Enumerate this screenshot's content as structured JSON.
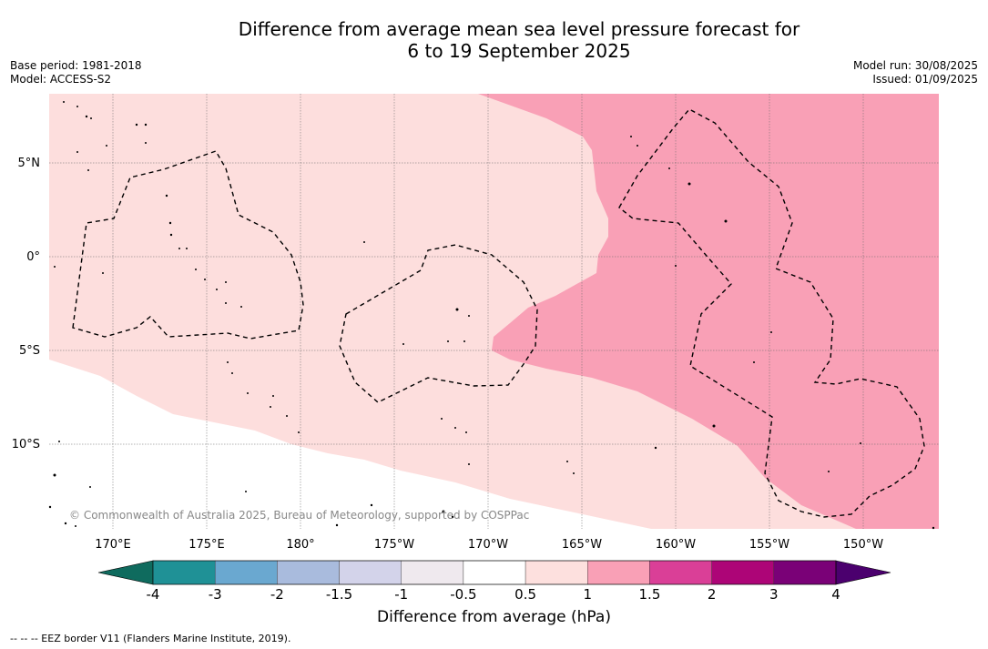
{
  "title_line1": "Difference from average mean sea level pressure forecast for",
  "title_line2": "6 to 19 September 2025",
  "meta_left": {
    "base_period": "Base period: 1981-2018",
    "model": "Model: ACCESS-S2"
  },
  "meta_right": {
    "model_run": "Model run: 30/08/2025",
    "issued": "Issued: 01/09/2025"
  },
  "copyright": "© Commonwealth of Australia 2025, Bureau of Meteorology, supported by COSPPac",
  "lat_labels": [
    "5°N",
    "0°",
    "5°S",
    "10°S"
  ],
  "lon_labels": [
    "170°E",
    "175°E",
    "180°",
    "175°W",
    "170°W",
    "165°W",
    "160°W",
    "155°W",
    "150°W"
  ],
  "colorbar": {
    "title": "Difference from average (hPa)",
    "tick_labels": [
      "-4",
      "-3",
      "-2",
      "-1.5",
      "-1",
      "-0.5",
      "0.5",
      "1",
      "1.5",
      "2",
      "3",
      "4"
    ],
    "colors": [
      "#0f6b5e",
      "#1f9196",
      "#6aa8d0",
      "#a9bbdd",
      "#d3d3ea",
      "#efe9ee",
      "#ffffff",
      "#fde0de",
      "#f9a0b6",
      "#da3f97",
      "#ad0577",
      "#7a0177",
      "#4b006e"
    ]
  },
  "map_colors": {
    "class_0_5_to_1": "#fddedd",
    "class_1_to_1_5": "#f9a0b6",
    "below_0_5": "#ffffff"
  },
  "footer": "-- -- -- EEZ border V11 (Flanders Marine Institute, 2019)."
}
